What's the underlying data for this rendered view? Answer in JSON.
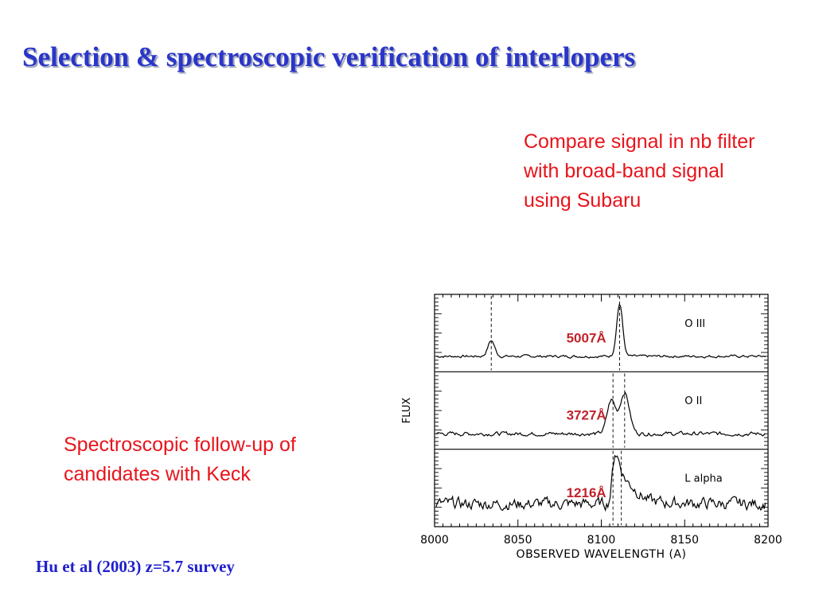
{
  "slide": {
    "title": "Selection & spectroscopic verification of interlopers",
    "note_top": "Compare signal in nb filter with broad-band signal using Subaru",
    "note_bottom": "Spectroscopic follow-up of candidates with Keck",
    "citation": "Hu et al (2003) z=5.7 survey"
  },
  "colors": {
    "title": "#2a35c9",
    "notes": "#e8141b",
    "citation": "#1f1fcf",
    "line_labels": "#c0232b"
  },
  "chart_data": {
    "type": "line",
    "xlabel": "OBSERVED WAVELENGTH (A)",
    "ylabel": "FLUX",
    "xlim": [
      8000,
      8200
    ],
    "x_ticks": [
      8000,
      8050,
      8100,
      8150,
      8200
    ],
    "grid": false,
    "panels": [
      {
        "name": "O III",
        "rest_label": "5007Å",
        "lines": [
          8034,
          8111
        ],
        "peaks": [
          {
            "x": 8034,
            "height": 0.3,
            "width": 2.0
          },
          {
            "x": 8111,
            "height": 1.0,
            "width": 1.8
          }
        ],
        "noise": 0.02
      },
      {
        "name": "O II",
        "rest_label": "3727Å",
        "lines": [
          8107,
          8114
        ],
        "peaks": [
          {
            "x": 8106,
            "height": 0.63,
            "width": 2.5
          },
          {
            "x": 8114,
            "height": 0.78,
            "width": 2.8
          }
        ],
        "noise": 0.03
      },
      {
        "name": "L alpha",
        "rest_label": "1216Å",
        "lines": [
          8107,
          8112
        ],
        "peaks": [
          {
            "x": 8108,
            "height": 0.8,
            "width": 2.2
          },
          {
            "x": 8115,
            "height": 0.32,
            "width": 6.5
          }
        ],
        "noise": 0.09
      }
    ]
  }
}
